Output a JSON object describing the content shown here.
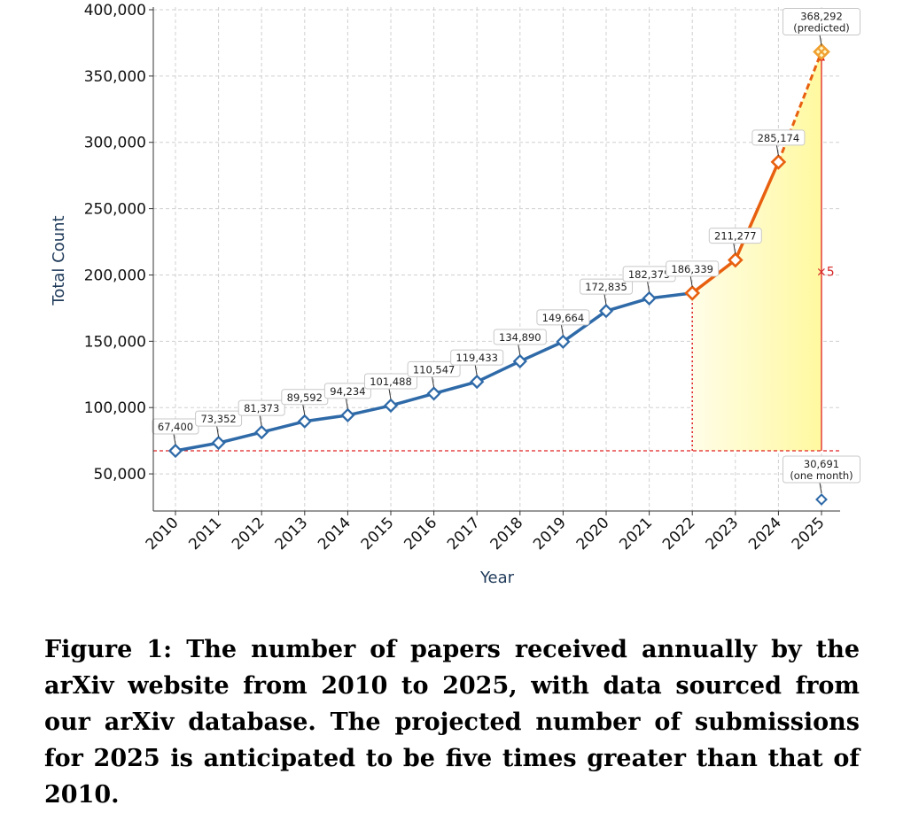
{
  "caption": "Figure 1: The number of papers received annually by the arXiv website from 2010 to 2025, with data sourced from our arXiv database. The projected number of submissions for 2025 is anticipated to be five times greater than that of 2010.",
  "chart_data": {
    "type": "line",
    "xlabel": "Year",
    "ylabel": "Total Count",
    "categories": [
      "2010",
      "2011",
      "2012",
      "2013",
      "2014",
      "2015",
      "2016",
      "2017",
      "2018",
      "2019",
      "2020",
      "2021",
      "2022",
      "2023",
      "2024",
      "2025"
    ],
    "ylim": [
      22000,
      402000
    ],
    "yticks": [
      50000,
      100000,
      150000,
      200000,
      250000,
      300000,
      350000,
      400000
    ],
    "ytick_labels": [
      "50,000",
      "100,000",
      "150,000",
      "200,000",
      "250,000",
      "300,000",
      "350,000",
      "400,000"
    ],
    "grid": true,
    "series": [
      {
        "style": "historical",
        "color": "#2f6aa8",
        "x": [
          "2010",
          "2011",
          "2012",
          "2013",
          "2014",
          "2015",
          "2016",
          "2017",
          "2018",
          "2019",
          "2020",
          "2021",
          "2022"
        ],
        "values": [
          67400,
          73352,
          81373,
          89592,
          94234,
          101488,
          110547,
          119433,
          134890,
          149664,
          172835,
          182375,
          186339
        ]
      },
      {
        "style": "recent",
        "color": "#e8600f",
        "x": [
          "2022",
          "2023",
          "2024"
        ],
        "values": [
          186339,
          211277,
          285174
        ]
      },
      {
        "style": "predicted",
        "color": "#e8600f",
        "x": [
          "2024",
          "2025"
        ],
        "values": [
          285174,
          368292
        ]
      },
      {
        "style": "partial",
        "color": "#2f6aa8",
        "x": [
          "2025"
        ],
        "values": [
          30691
        ]
      }
    ],
    "data_labels": [
      {
        "x": "2010",
        "value": 67400,
        "text": "67,400"
      },
      {
        "x": "2011",
        "value": 73352,
        "text": "73,352"
      },
      {
        "x": "2012",
        "value": 81373,
        "text": "81,373"
      },
      {
        "x": "2013",
        "value": 89592,
        "text": "89,592"
      },
      {
        "x": "2014",
        "value": 94234,
        "text": "94,234"
      },
      {
        "x": "2015",
        "value": 101488,
        "text": "101,488"
      },
      {
        "x": "2016",
        "value": 110547,
        "text": "110,547"
      },
      {
        "x": "2017",
        "value": 119433,
        "text": "119,433"
      },
      {
        "x": "2018",
        "value": 134890,
        "text": "134,890"
      },
      {
        "x": "2019",
        "value": 149664,
        "text": "149,664"
      },
      {
        "x": "2020",
        "value": 172835,
        "text": "172,835"
      },
      {
        "x": "2021",
        "value": 182375,
        "text": "182,375"
      },
      {
        "x": "2022",
        "value": 186339,
        "text": "186,339"
      },
      {
        "x": "2023",
        "value": 211277,
        "text": "211,277"
      },
      {
        "x": "2024",
        "value": 285174,
        "text": "285,174"
      },
      {
        "x": "2025",
        "value": 368292,
        "text": "368,292",
        "sub": "(predicted)"
      },
      {
        "x": "2025",
        "value": 30691,
        "text": "30,691",
        "sub": "(one month)"
      }
    ],
    "reference": {
      "baseline_value": 67400,
      "baseline_color": "#e02020",
      "split_year": "2022",
      "fill_color_start": "#fffde8",
      "fill_color_end": "#fff9a0",
      "multiplier_text": "×5",
      "multiplier_color": "#d62728"
    }
  }
}
